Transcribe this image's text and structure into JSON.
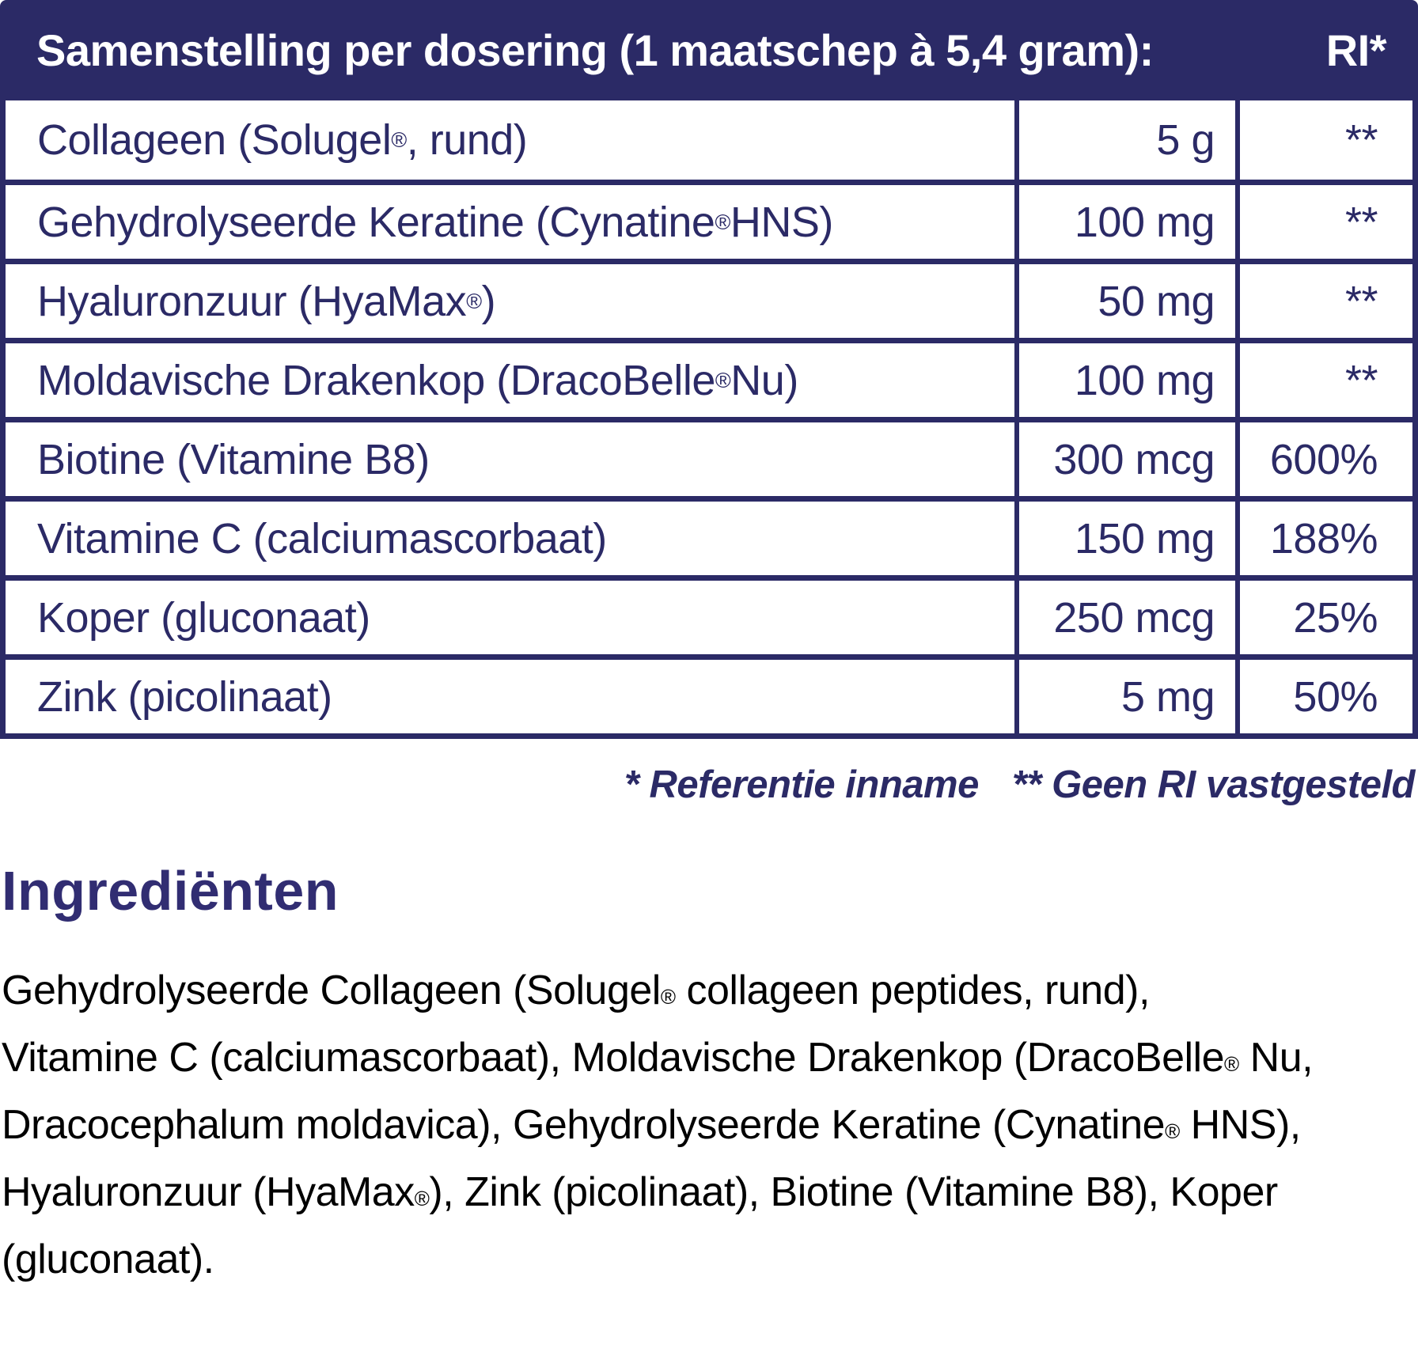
{
  "colors": {
    "navy": "#2b2a66",
    "heading": "#312d72",
    "paragraph_text": "#000000",
    "header_text": "#ffffff"
  },
  "table": {
    "header": {
      "title": "Samenstelling per dosering (1 maatschep à 5,4 gram):",
      "ri_label": "RI*"
    },
    "columns": [
      "ingredient",
      "amount",
      "ri_percent"
    ],
    "rows": [
      {
        "name": "Collageen (Solugel®, rund)",
        "amount": "5 g",
        "ri": "**"
      },
      {
        "name": "Gehydrolyseerde Keratine (Cynatine® HNS)",
        "amount": "100 mg",
        "ri": "**"
      },
      {
        "name": "Hyaluronzuur (HyaMax®)",
        "amount": "50 mg",
        "ri": "**"
      },
      {
        "name": "Moldavische Drakenkop (DracoBelle® Nu)",
        "amount": "100 mg",
        "ri": "**"
      },
      {
        "name": "Biotine (Vitamine B8)",
        "amount": "300 mcg",
        "ri": "600%"
      },
      {
        "name": "Vitamine C (calciumascorbaat)",
        "amount": "150 mg",
        "ri": "188%"
      },
      {
        "name": "Koper (gluconaat)",
        "amount": "250 mcg",
        "ri": "25%"
      },
      {
        "name": "Zink (picolinaat)",
        "amount": "5 mg",
        "ri": "50%"
      }
    ]
  },
  "footnote": {
    "reference": "* Referentie inname",
    "no_ri": "** Geen RI vastgesteld"
  },
  "ingredients": {
    "heading": "Ingrediënten",
    "lines": [
      "Gehydrolyseerde Collageen (Solugel® collageen peptides, rund),",
      "Vitamine C (calciumascorbaat), Moldavische Drakenkop (DracoBelle® Nu,",
      "Dracocephalum moldavica), Gehydrolyseerde Keratine (Cynatine® HNS),",
      "Hyaluronzuur (HyaMax®), Zink (picolinaat), Biotine (Vitamine B8), Koper",
      "(gluconaat)."
    ]
  }
}
